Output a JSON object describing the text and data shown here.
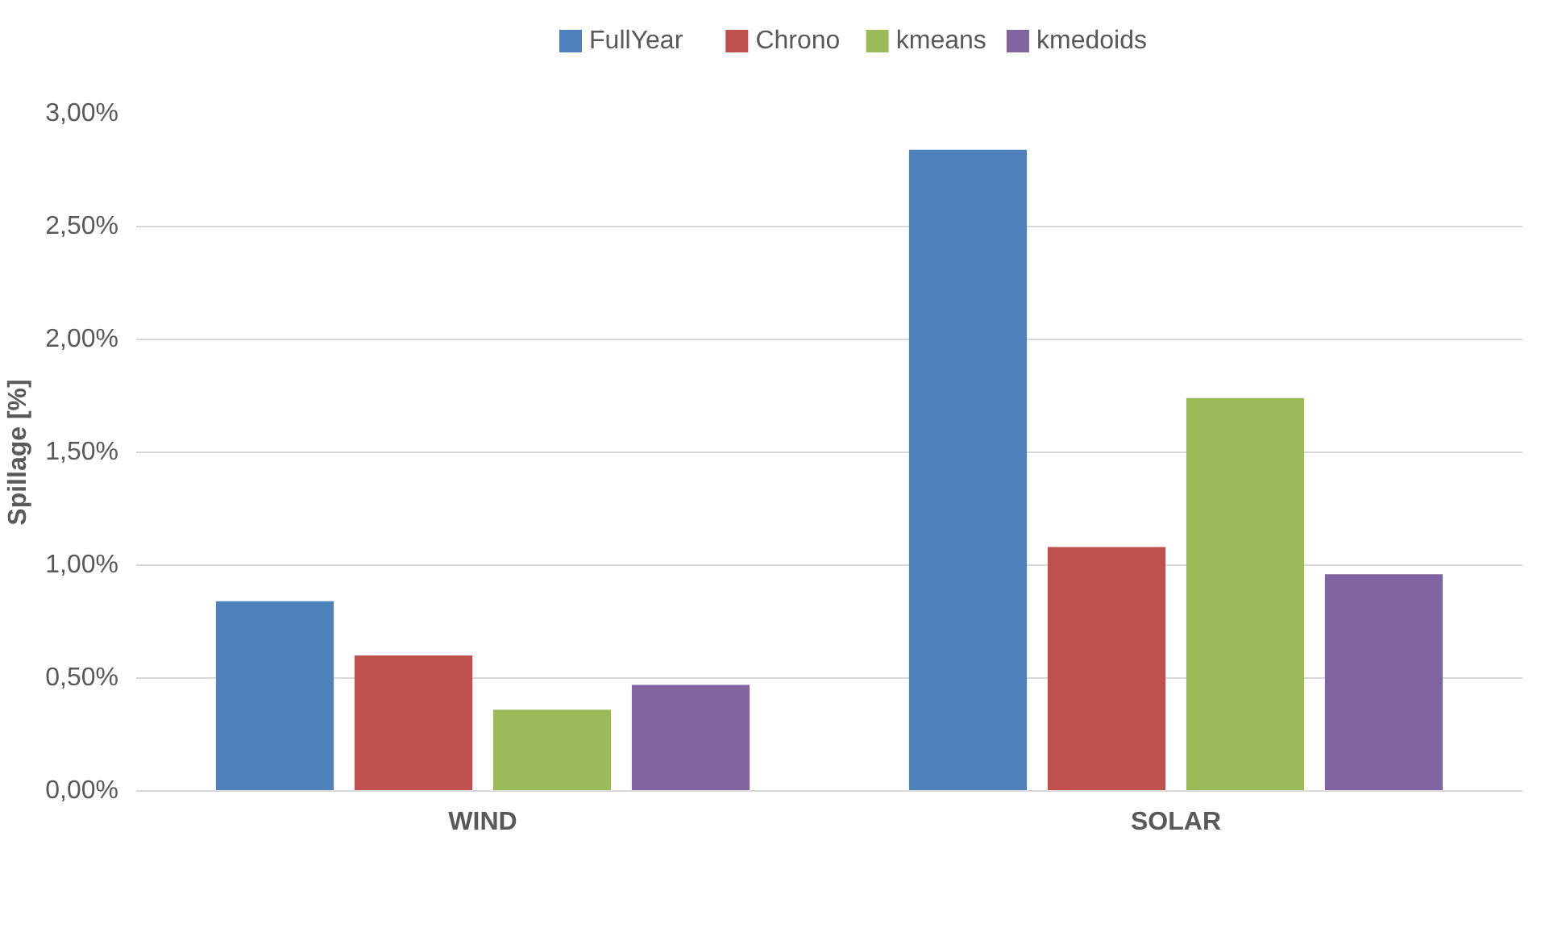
{
  "chart_data": {
    "type": "bar",
    "ylabel": "Spillage [%]",
    "categories": [
      "WIND",
      "SOLAR"
    ],
    "series": [
      {
        "name": "FullYear",
        "color": "#4f81bd",
        "values": [
          0.84,
          2.84
        ]
      },
      {
        "name": "Chrono",
        "color": "#c0504d",
        "values": [
          0.6,
          1.08
        ]
      },
      {
        "name": "kmeans",
        "color": "#9bbb59",
        "values": [
          0.36,
          1.74
        ]
      },
      {
        "name": "kmedoids",
        "color": "#8064a2",
        "values": [
          0.47,
          0.96
        ]
      }
    ],
    "ylim": [
      0,
      3.0
    ],
    "yticks": [
      {
        "value": 0,
        "label": "0,00%"
      },
      {
        "value": 0.5,
        "label": "0,50%"
      },
      {
        "value": 1.0,
        "label": "1,00%"
      },
      {
        "value": 1.5,
        "label": "1,50%"
      },
      {
        "value": 2.0,
        "label": "2,00%"
      },
      {
        "value": 2.5,
        "label": "2,50%"
      },
      {
        "value": 3.0,
        "label": "3,00%"
      }
    ],
    "grid": "y",
    "legend": "top"
  }
}
